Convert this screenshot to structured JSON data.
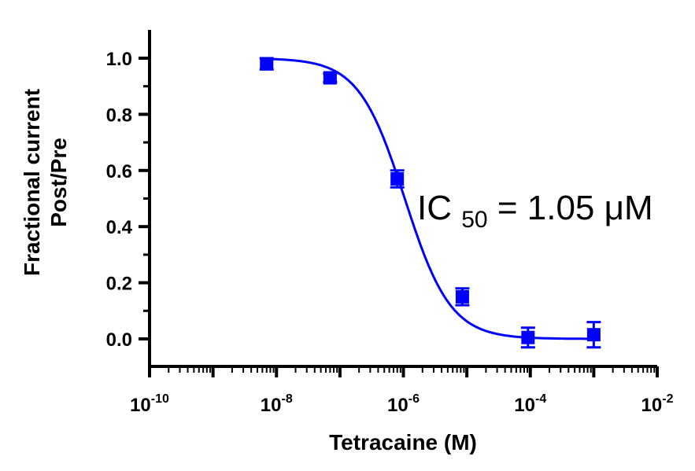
{
  "chart_data": {
    "type": "scatter",
    "xscale": "log",
    "xlim": [
      1e-10,
      0.01
    ],
    "ylim": [
      -0.1,
      1.1
    ],
    "xlabel": "Tetracaine (M)",
    "ylabel": [
      "Fractional current",
      "Post/Pre"
    ],
    "x_ticks": [
      {
        "value": 1e-10,
        "base": "10",
        "exp": "-10"
      },
      {
        "value": 1e-08,
        "base": "10",
        "exp": "-8"
      },
      {
        "value": 1e-06,
        "base": "10",
        "exp": "-6"
      },
      {
        "value": 0.0001,
        "base": "10",
        "exp": "-4"
      },
      {
        "value": 0.01,
        "base": "10",
        "exp": "-2"
      }
    ],
    "y_ticks": [
      "0.0",
      "0.2",
      "0.4",
      "0.6",
      "0.8",
      "1.0"
    ],
    "series": [
      {
        "color": "#0000ff",
        "marker": "square",
        "points": [
          {
            "x": 7e-09,
            "y": 0.98,
            "err": 0.02
          },
          {
            "x": 7e-08,
            "y": 0.93,
            "err": 0.015
          },
          {
            "x": 8e-07,
            "y": 0.57,
            "err": 0.03
          },
          {
            "x": 8.5e-06,
            "y": 0.15,
            "err": 0.03
          },
          {
            "x": 9.2e-05,
            "y": 0.005,
            "err": 0.035
          },
          {
            "x": 0.001,
            "y": 0.015,
            "err": 0.045
          }
        ],
        "fit": {
          "model": "hill",
          "top": 1.0,
          "bottom": 0.0,
          "ic50": 1.05e-06,
          "hill": 1.2
        }
      }
    ],
    "annotation": {
      "main": "IC",
      "sub": "50",
      "rest": " = 1.05 μM"
    },
    "grid": false
  }
}
